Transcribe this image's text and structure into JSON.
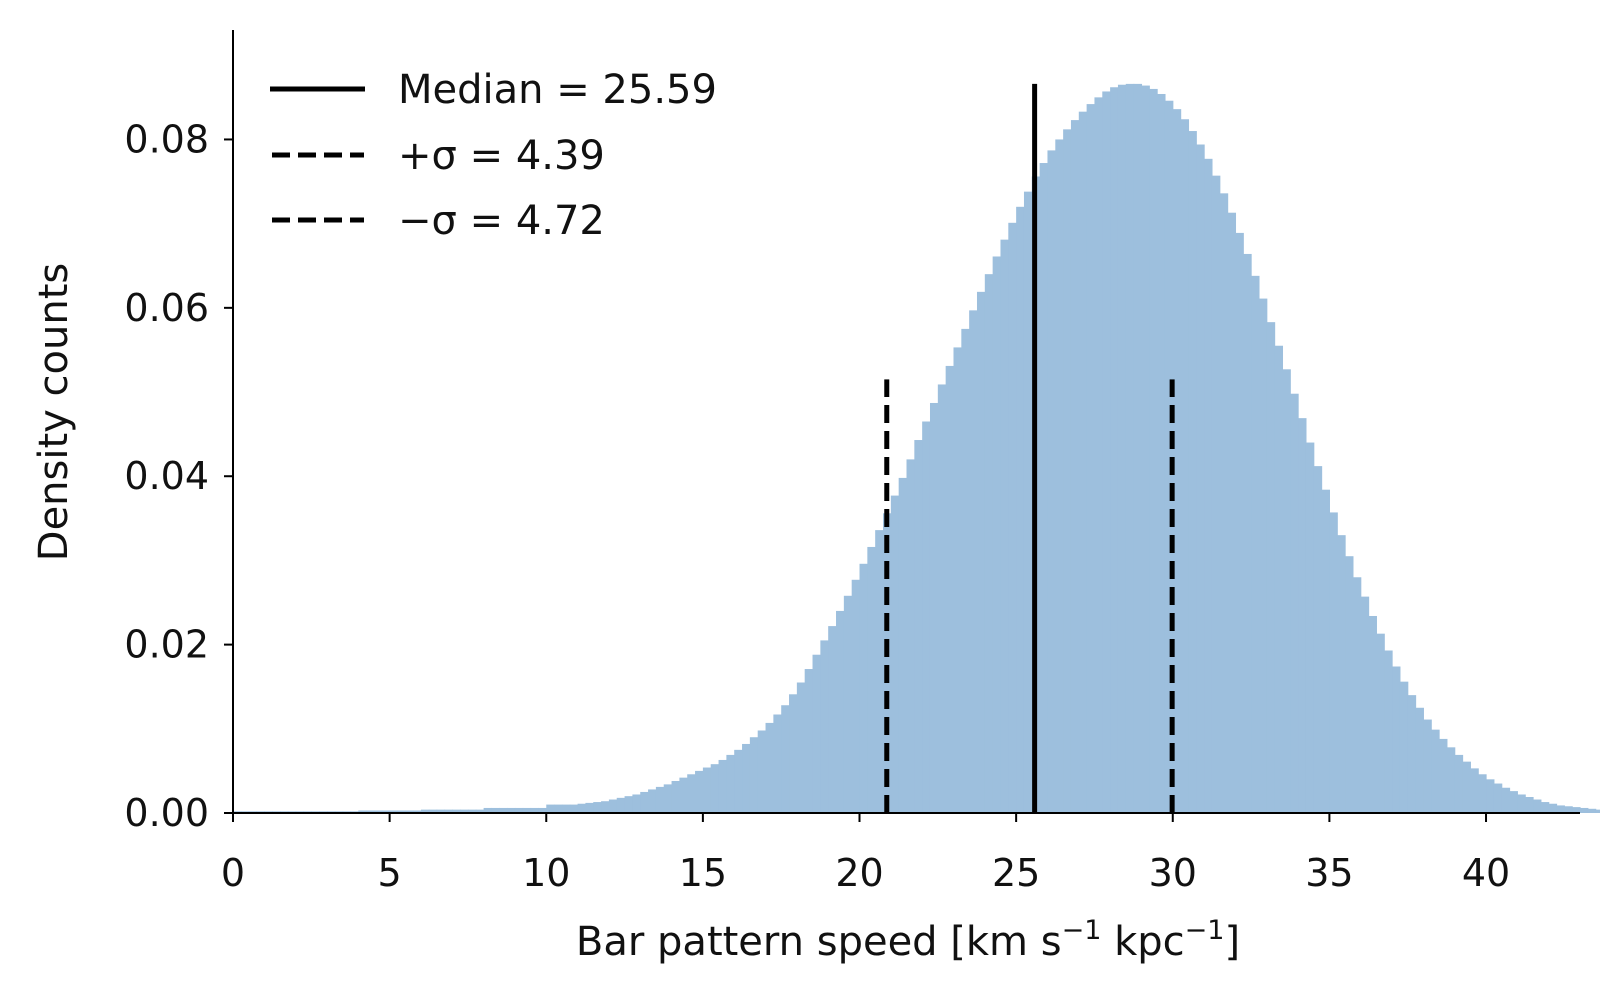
{
  "chart_data": {
    "type": "bar",
    "xlabel_main": "Bar pattern speed [km s",
    "xlabel_mid": " kpc",
    "xlabel_end": "]",
    "xlabel_sup": "−1",
    "ylabel": "Density counts",
    "xlim": [
      0,
      43
    ],
    "ylim": [
      0,
      0.093
    ],
    "xticks": [
      0,
      5,
      10,
      15,
      20,
      25,
      30,
      35,
      40
    ],
    "xtick_labels": [
      "0",
      "5",
      "10",
      "15",
      "20",
      "25",
      "30",
      "35",
      "40"
    ],
    "yticks": [
      0,
      0.02,
      0.04,
      0.06,
      0.08
    ],
    "ytick_labels": [
      "0.00",
      "0.02",
      "0.04",
      "0.06",
      "0.08"
    ],
    "grid": false,
    "legend_position": "top-left",
    "colors": {
      "bars": "#9dbfdd",
      "lines": "#000000"
    },
    "histogram": {
      "bin_start": 0,
      "bin_width": 0.25,
      "density": [
        0.0002,
        0.0002,
        0.0002,
        0.0002,
        0.0002,
        0.0002,
        0.0002,
        0.0002,
        0.0002,
        0.0002,
        0.0002,
        0.0002,
        0.0002,
        0.0002,
        0.0002,
        0.0002,
        0.0003,
        0.0003,
        0.0003,
        0.0003,
        0.0003,
        0.0003,
        0.0003,
        0.0003,
        0.0004,
        0.0004,
        0.0004,
        0.0004,
        0.0004,
        0.0004,
        0.0004,
        0.0004,
        0.0006,
        0.0006,
        0.0006,
        0.0006,
        0.0006,
        0.0006,
        0.0006,
        0.0006,
        0.001,
        0.001,
        0.001,
        0.001,
        0.0011,
        0.0012,
        0.0013,
        0.0014,
        0.0016,
        0.0018,
        0.002,
        0.0022,
        0.0025,
        0.0028,
        0.0031,
        0.0034,
        0.0038,
        0.0042,
        0.0046,
        0.005,
        0.0054,
        0.0058,
        0.0063,
        0.0069,
        0.0075,
        0.0082,
        0.009,
        0.0098,
        0.0107,
        0.0117,
        0.0128,
        0.0141,
        0.0155,
        0.0171,
        0.0188,
        0.0205,
        0.0222,
        0.024,
        0.0258,
        0.0277,
        0.0296,
        0.0316,
        0.0336,
        0.0356,
        0.0377,
        0.0398,
        0.042,
        0.0443,
        0.0465,
        0.0487,
        0.0509,
        0.0531,
        0.0553,
        0.0575,
        0.0597,
        0.0619,
        0.064,
        0.0661,
        0.0681,
        0.0701,
        0.072,
        0.0738,
        0.0756,
        0.0772,
        0.0787,
        0.08,
        0.0812,
        0.0823,
        0.0833,
        0.0842,
        0.085,
        0.0857,
        0.0862,
        0.0865,
        0.0866,
        0.0866,
        0.0864,
        0.086,
        0.0854,
        0.0846,
        0.0836,
        0.0824,
        0.081,
        0.0794,
        0.0777,
        0.0757,
        0.0736,
        0.0713,
        0.0689,
        0.0664,
        0.0638,
        0.0611,
        0.0583,
        0.0555,
        0.0527,
        0.0498,
        0.0469,
        0.044,
        0.0412,
        0.0384,
        0.0357,
        0.033,
        0.0305,
        0.028,
        0.0257,
        0.0234,
        0.0213,
        0.0193,
        0.0174,
        0.0156,
        0.014,
        0.0125,
        0.0111,
        0.0099,
        0.0088,
        0.0078,
        0.0069,
        0.0061,
        0.0053,
        0.0046,
        0.004,
        0.0035,
        0.003,
        0.0026,
        0.0022,
        0.0019,
        0.0016,
        0.0013,
        0.0011,
        0.0009,
        0.0008,
        0.0007,
        0.0006,
        0.0005,
        0.0004,
        0.0003,
        0.0002,
        0.0002,
        0.0002,
        0.0001
      ]
    },
    "vlines": [
      {
        "x": 25.59,
        "y_max": 0.0866,
        "style": "solid"
      },
      {
        "x": 20.87,
        "y_max": 0.0515,
        "style": "dashed"
      },
      {
        "x": 29.98,
        "y_max": 0.0515,
        "style": "dashed"
      }
    ],
    "legend": [
      {
        "label": "Median = 25.59",
        "style": "solid"
      },
      {
        "label": "+σ = 4.39",
        "style": "dashed"
      },
      {
        "label": "−σ = 4.72",
        "style": "dashed"
      }
    ]
  }
}
